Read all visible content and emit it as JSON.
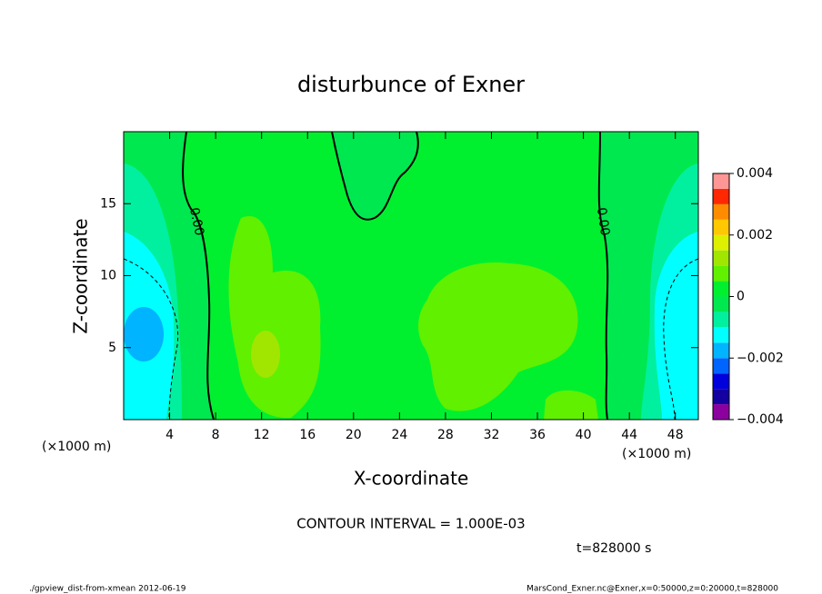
{
  "chart_data": {
    "type": "contour",
    "title": "disturbunce of Exner",
    "x_label": "X-coordinate",
    "y_label": "Z-coordinate",
    "x_unit_label": "(×1000 m)",
    "x_unit_label_right": "(×1000 m)",
    "xlim": [
      0,
      50
    ],
    "xticks": [
      4,
      8,
      12,
      16,
      20,
      24,
      28,
      32,
      36,
      40,
      44,
      48
    ],
    "ylim": [
      0,
      20
    ],
    "yticks": [
      5,
      10,
      15
    ],
    "contour_labels": [
      "0.00",
      "0.00"
    ],
    "contour_interval": "CONTOUR INTERVAL = 1.000E-03",
    "time_label": "t=828000 s",
    "footer_left": "./gpview_dist-from-xmean  2012-06-19",
    "footer_right": "MarsCond_Exner.nc@Exner,x=0:50000,z=0:20000,t=828000",
    "colorbar": {
      "levels": [
        -0.004,
        -0.0035,
        -0.003,
        -0.0025,
        -0.002,
        -0.0015,
        -0.001,
        -0.0005,
        0,
        0.0005,
        0.001,
        0.0015,
        0.002,
        0.0025,
        0.003,
        0.0035,
        0.004
      ],
      "colors": [
        "#8c00a0",
        "#1400a0",
        "#0000dc",
        "#0064ff",
        "#00b4ff",
        "#00ffff",
        "#00f0a0",
        "#00e850",
        "#00f030",
        "#60f000",
        "#a0e600",
        "#dcf000",
        "#ffc800",
        "#ff8c00",
        "#ff2800",
        "#ff9696"
      ],
      "ticks": [
        {
          "value": -0.004,
          "label": "−0.004"
        },
        {
          "value": -0.002,
          "label": "−0.002"
        },
        0,
        0.002,
        0.004
      ]
    }
  }
}
